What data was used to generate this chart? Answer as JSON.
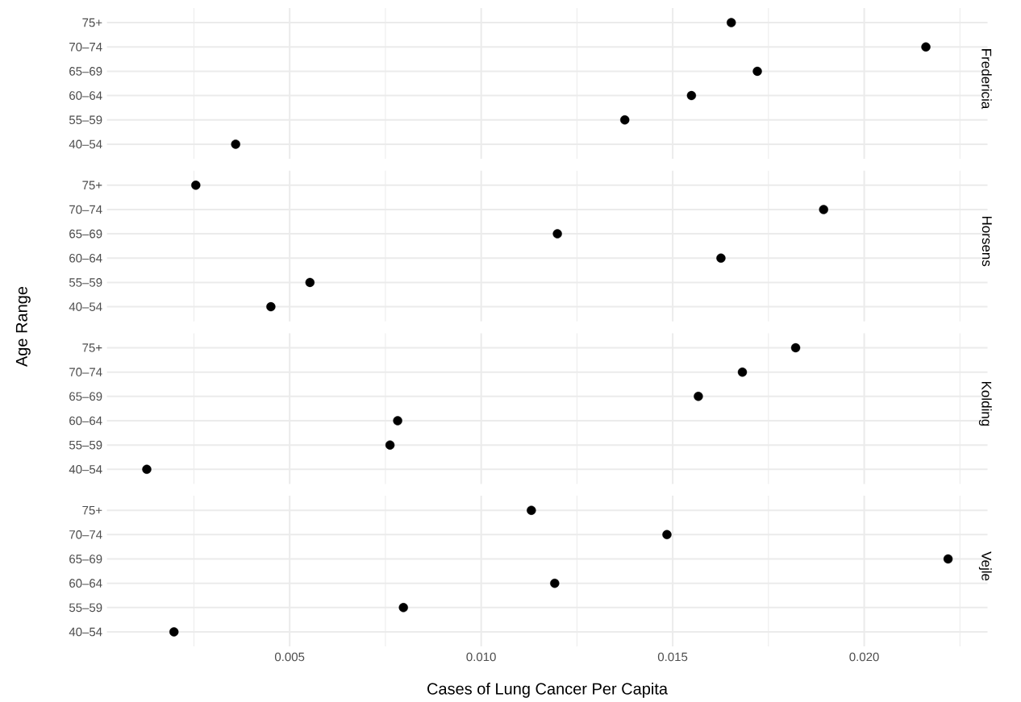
{
  "chart_data": [
    {
      "type": "scatter",
      "orientation": "horizontal",
      "title": "Fredericia",
      "ylabel": null,
      "categories": [
        "75+",
        "70–74",
        "65–69",
        "60–64",
        "55–59",
        "40–54"
      ],
      "values": [
        0.01653,
        0.02161,
        0.01721,
        0.01549,
        0.01375,
        0.00359
      ],
      "color": "#000000",
      "marker": "circle",
      "grid": true,
      "tick_labels": "y",
      "xlim": [
        0.00023,
        0.02322
      ],
      "xticks": [
        {
          "value": 0.0025,
          "label": null
        },
        0.005,
        {
          "value": 0.0075,
          "label": null
        },
        0.01,
        {
          "value": 0.0125,
          "label": null
        },
        0.015,
        {
          "value": 0.0175,
          "label": null
        },
        0.02,
        {
          "value": 0.0225,
          "label": null
        }
      ]
    },
    {
      "type": "scatter",
      "orientation": "horizontal",
      "title": "Horsens",
      "ylabel": "Age Range",
      "categories": [
        "75+",
        "70–74",
        "65–69",
        "60–64",
        "55–59",
        "40–54"
      ],
      "values": [
        0.00255,
        0.01894,
        0.01199,
        0.01626,
        0.00553,
        0.00451
      ],
      "color": "#000000",
      "marker": "circle",
      "grid": true,
      "tick_labels": "y",
      "xlim": [
        0.00023,
        0.02322
      ],
      "xticks": [
        {
          "value": 0.0025,
          "label": null
        },
        0.005,
        {
          "value": 0.0075,
          "label": null
        },
        0.01,
        {
          "value": 0.0125,
          "label": null
        },
        0.015,
        {
          "value": 0.0175,
          "label": null
        },
        0.02,
        {
          "value": 0.0225,
          "label": null
        }
      ]
    },
    {
      "type": "scatter",
      "orientation": "horizontal",
      "title": "Kolding",
      "categories": [
        "75+",
        "70–74",
        "65–69",
        "60–64",
        "55–59",
        "40–54"
      ],
      "values": [
        0.01821,
        0.01682,
        0.01567,
        0.00782,
        0.00762,
        0.00127
      ],
      "color": "#000000",
      "marker": "circle",
      "grid": true,
      "tick_labels": "y",
      "xlim": [
        0.00023,
        0.02322
      ],
      "xticks": [
        {
          "value": 0.0025,
          "label": null
        },
        0.005,
        {
          "value": 0.0075,
          "label": null
        },
        0.01,
        {
          "value": 0.0125,
          "label": null
        },
        0.015,
        {
          "value": 0.0175,
          "label": null
        },
        0.02,
        {
          "value": 0.0225,
          "label": null
        }
      ]
    },
    {
      "type": "scatter",
      "orientation": "horizontal",
      "title": "Vejle",
      "xlabel": "Cases of Lung Cancer Per Capita",
      "categories": [
        "75+",
        "70–74",
        "65–69",
        "60–64",
        "55–59",
        "40–54"
      ],
      "values": [
        0.01131,
        0.01485,
        0.02219,
        0.01192,
        0.00797,
        0.00198
      ],
      "color": "#000000",
      "marker": "circle",
      "grid": true,
      "xlim": [
        0.00023,
        0.02322
      ],
      "xticks": [
        {
          "value": 0.0025,
          "label": null
        },
        0.005,
        {
          "value": 0.0075,
          "label": null
        },
        {
          "value": 0.01,
          "label": "0.010"
        },
        {
          "value": 0.0125,
          "label": null
        },
        0.015,
        {
          "value": 0.0175,
          "label": null
        },
        {
          "value": 0.02,
          "label": "0.020"
        },
        {
          "value": 0.0225,
          "label": null
        }
      ]
    }
  ]
}
